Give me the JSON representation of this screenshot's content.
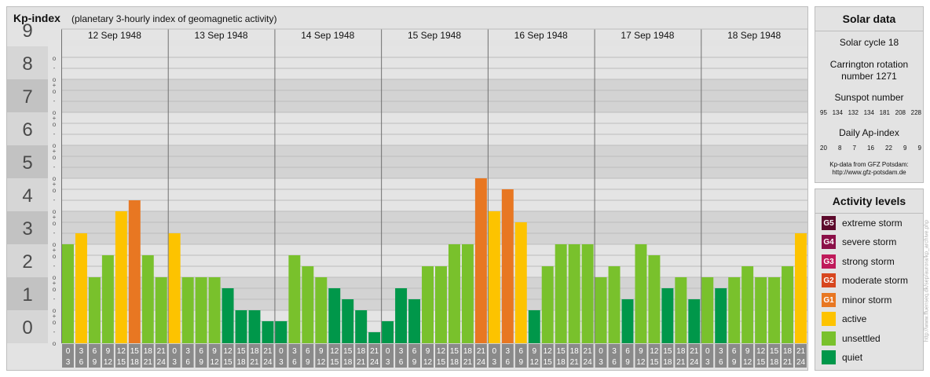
{
  "header": {
    "title": "Kp-index",
    "subtitle": "(planetary 3-hourly index of geomagnetic activity)"
  },
  "chart_data": {
    "type": "bar",
    "title": "Kp-index",
    "subtitle": "(planetary 3-hourly index of geomagnetic activity)",
    "ylim": [
      0,
      9
    ],
    "y_ticks": [
      "0",
      "1",
      "2",
      "3",
      "4",
      "5",
      "6",
      "7",
      "8",
      "9"
    ],
    "y_minor_ticks": [
      "+",
      "o",
      "-"
    ],
    "days": [
      "12 Sep 1948",
      "13 Sep 1948",
      "14 Sep 1948",
      "15 Sep 1948",
      "16 Sep 1948",
      "17 Sep 1948",
      "18 Sep 1948"
    ],
    "slot_labels": [
      [
        "0",
        "3"
      ],
      [
        "3",
        "6"
      ],
      [
        "6",
        "9"
      ],
      [
        "9",
        "12"
      ],
      [
        "12",
        "15"
      ],
      [
        "15",
        "18"
      ],
      [
        "18",
        "21"
      ],
      [
        "21",
        "24"
      ]
    ],
    "values": [
      [
        3.0,
        3.333,
        2.0,
        2.667,
        4.0,
        4.333,
        2.667,
        2.0
      ],
      [
        3.333,
        2.0,
        2.0,
        2.0,
        1.667,
        1.0,
        1.0,
        0.667
      ],
      [
        0.667,
        2.667,
        2.333,
        2.0,
        1.667,
        1.333,
        1.0,
        0.333
      ],
      [
        0.667,
        1.667,
        1.333,
        2.333,
        2.333,
        3.0,
        3.0,
        5.0
      ],
      [
        4.0,
        4.667,
        3.667,
        1.0,
        2.333,
        3.0,
        3.0,
        3.0
      ],
      [
        2.0,
        2.333,
        1.333,
        3.0,
        2.667,
        1.667,
        2.0,
        1.333
      ],
      [
        2.0,
        1.667,
        2.0,
        2.333,
        2.0,
        2.0,
        2.333,
        3.333
      ]
    ],
    "color_thresholds": [
      {
        "min": 0,
        "level": "quiet"
      },
      {
        "min": 2,
        "level": "unsettled"
      },
      {
        "min": 3.333,
        "level": "active"
      },
      {
        "min": 4.333,
        "level": "G1"
      },
      {
        "min": 5.333,
        "level": "G2"
      },
      {
        "min": 6.333,
        "level": "G3"
      },
      {
        "min": 7.333,
        "level": "G4"
      },
      {
        "min": 8.333,
        "level": "G5"
      }
    ],
    "level_colors": {
      "quiet": "#00974a",
      "unsettled": "#79c12c",
      "active": "#fdc300",
      "G1": "#e87722",
      "G2": "#d7461e",
      "G3": "#bf1a5a",
      "G4": "#8b1048",
      "G5": "#5d0a2c"
    },
    "grid": true
  },
  "solar": {
    "title": "Solar data",
    "cycle": "Solar cycle 18",
    "carrington_line1": "Carrington rotation",
    "carrington_line2": "number 1271",
    "sunspot_title": "Sunspot number",
    "sunspot_values": [
      "95",
      "134",
      "132",
      "134",
      "181",
      "208",
      "228"
    ],
    "ap_title": "Daily Ap-index",
    "ap_values": [
      "20",
      "8",
      "7",
      "16",
      "22",
      "9",
      "9"
    ],
    "source_line1": "Kp-data from GFZ Potsdam:",
    "source_line2": "http://www.gfz-potsdam.de"
  },
  "activity": {
    "title": "Activity levels",
    "items": [
      {
        "code": "G5",
        "label": "extreme storm",
        "color": "#5d0a2c"
      },
      {
        "code": "G4",
        "label": "severe storm",
        "color": "#8b1048"
      },
      {
        "code": "G3",
        "label": "strong storm",
        "color": "#bf1a5a"
      },
      {
        "code": "G2",
        "label": "moderate storm",
        "color": "#d7461e"
      },
      {
        "code": "G1",
        "label": "minor storm",
        "color": "#e87722"
      },
      {
        "code": "",
        "label": "active",
        "color": "#fdc300"
      },
      {
        "code": "",
        "label": "unsettled",
        "color": "#79c12c"
      },
      {
        "code": "",
        "label": "quiet",
        "color": "#00974a"
      }
    ]
  },
  "watermark": "http://www.ffuenseq.dk/sep/aurora/kp_archive.php"
}
